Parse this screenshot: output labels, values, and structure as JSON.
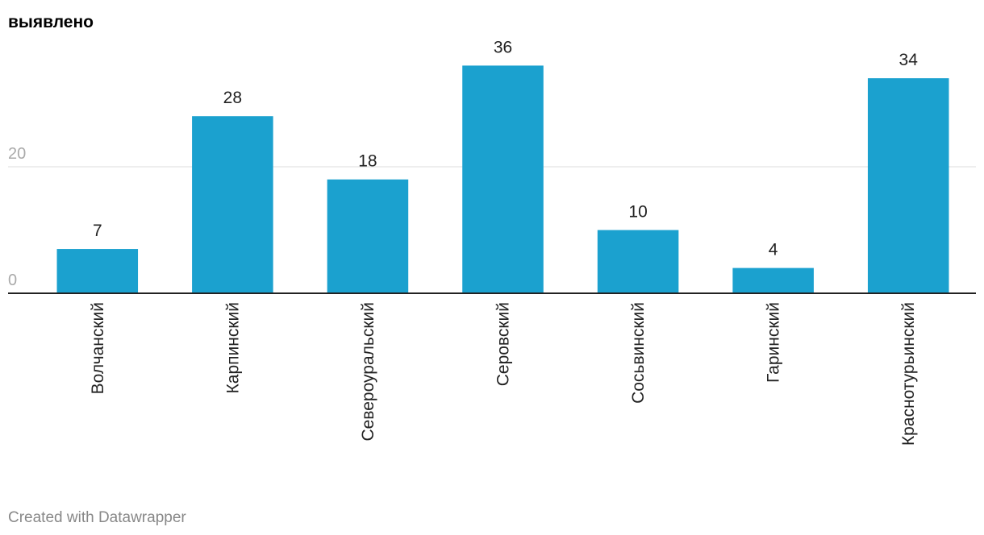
{
  "chart_data": {
    "type": "bar",
    "title": "выявлено",
    "categories": [
      "Волчанский",
      "Карпинский",
      "Североуральский",
      "Серовский",
      "Сосьвинский",
      "Гаринский",
      "Краснотурьинский"
    ],
    "values": [
      7,
      28,
      18,
      36,
      10,
      4,
      34
    ],
    "color": "#1ba1cf",
    "ylim": [
      0,
      40
    ],
    "yticks": [
      0,
      20
    ],
    "grid": true,
    "source": "Created with Datawrapper"
  }
}
